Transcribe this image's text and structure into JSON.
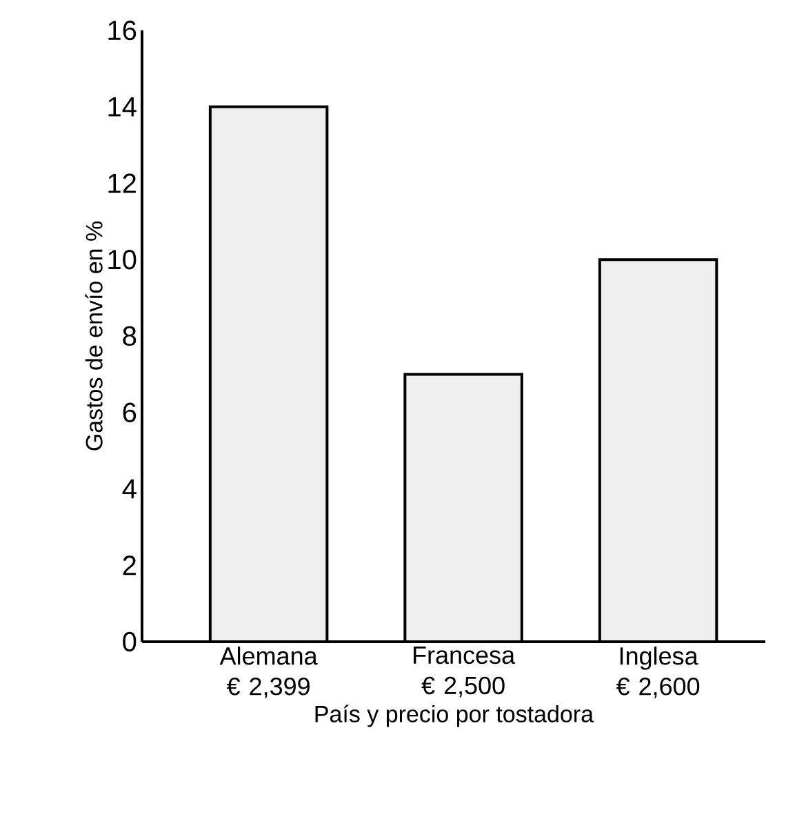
{
  "chart_data": {
    "type": "bar",
    "xlabel": "País y precio por tostadora",
    "ylabel": "Gastos de envío en %",
    "categories": [
      "Alemana € 2,399",
      "Francesa € 2,500",
      "Inglesa € 2,600"
    ],
    "values": [
      14,
      7,
      10
    ],
    "color": "#efefef",
    "ylim": [
      0,
      16
    ],
    "yticks": [
      0,
      2,
      4,
      6,
      8,
      10,
      12,
      14,
      16
    ],
    "grid": false
  }
}
